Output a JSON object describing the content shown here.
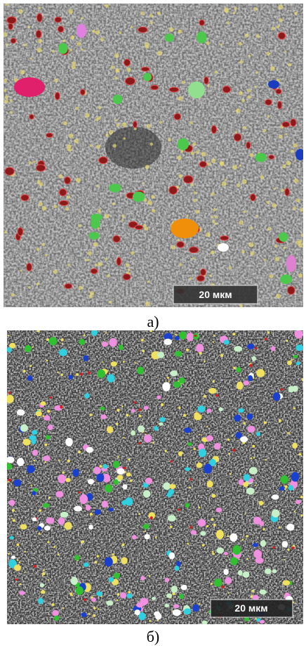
{
  "panels": [
    {
      "label": "а)",
      "scale_bar": "20 мкм"
    },
    {
      "label": "б)",
      "scale_bar": "20 мкм"
    }
  ]
}
